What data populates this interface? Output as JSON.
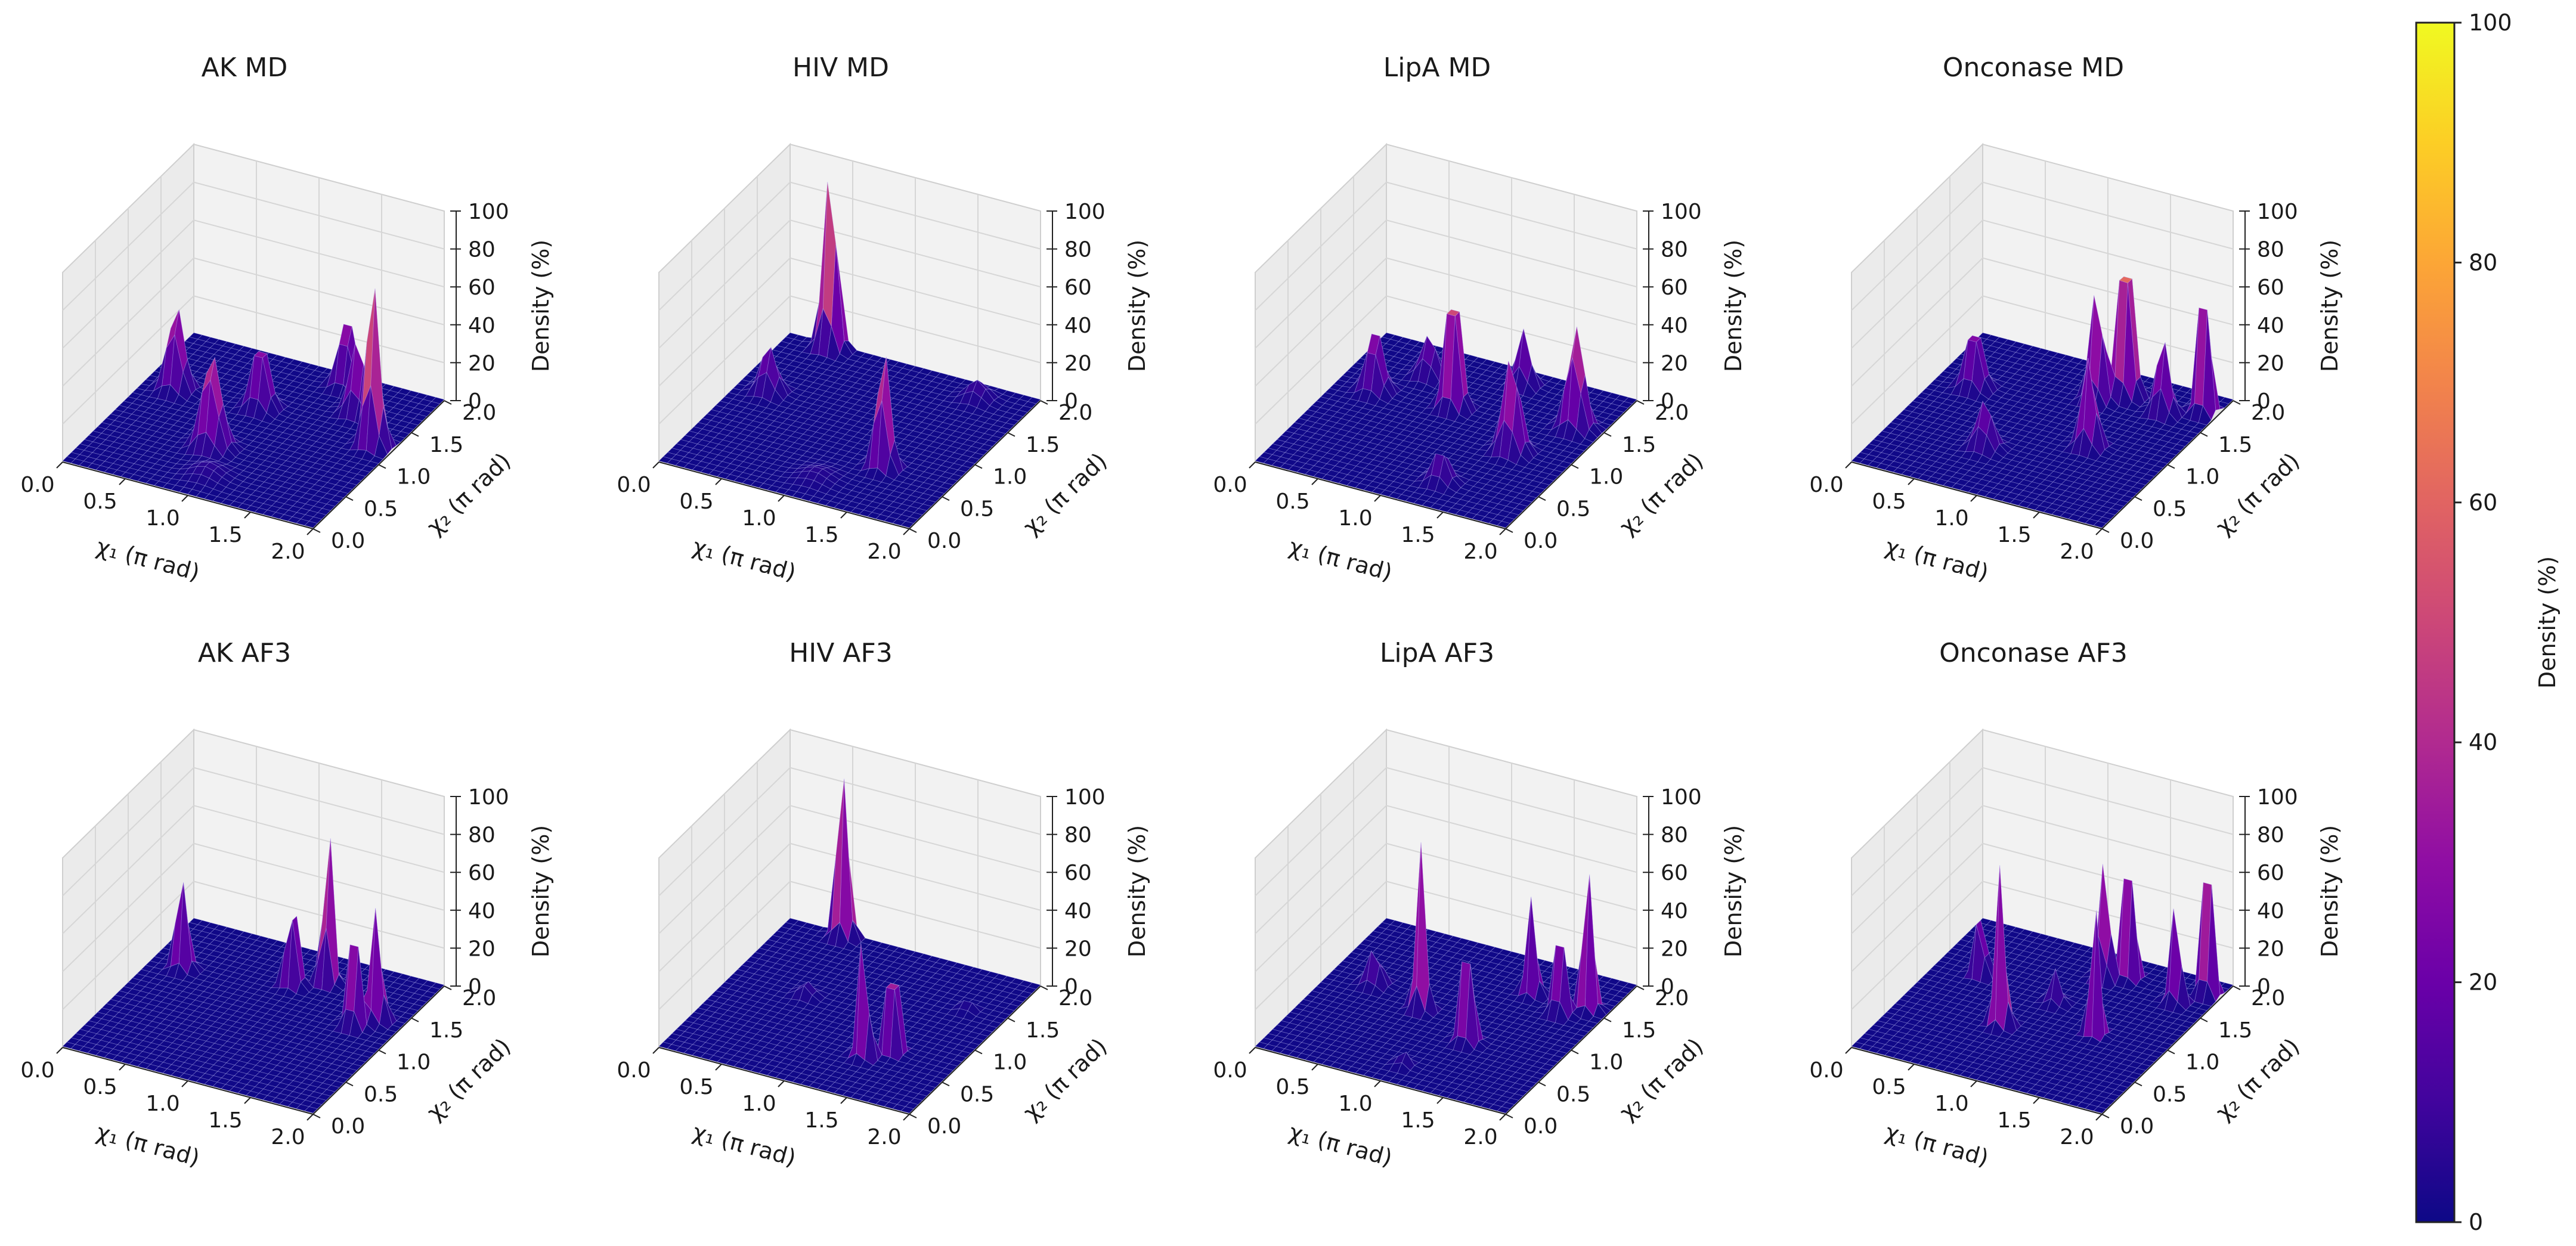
{
  "chart_data": {
    "type": "surface3d",
    "description_note": "Eight 3D surface density plots of chi1/chi2 dihedral angles, MD vs AF3",
    "shared_axes": {
      "xlabel": "χ₁ (π rad)",
      "ylabel": "χ₂ (π rad)",
      "zlabel": "Density (%)",
      "x_ticks": [
        "0.0",
        "0.5",
        "1.0",
        "1.5",
        "2.0"
      ],
      "y_ticks": [
        "0.0",
        "0.5",
        "1.0",
        "1.5",
        "2.0"
      ],
      "z_ticks": [
        "0",
        "20",
        "40",
        "60",
        "80",
        "100"
      ],
      "xlim": [
        0,
        2
      ],
      "ylim": [
        0,
        2
      ],
      "zlim": [
        0,
        100
      ]
    },
    "colorbar": {
      "label": "Density (%)",
      "ticks": [
        "0",
        "20",
        "40",
        "60",
        "80",
        "100"
      ],
      "range": [
        0,
        100
      ],
      "colormap": "plasma"
    },
    "panels": [
      {
        "title": "AK MD",
        "peaks": [
          {
            "x": 0.25,
            "y": 1.25,
            "z": 45,
            "w": 0.06
          },
          {
            "x": 0.85,
            "y": 0.65,
            "z": 50,
            "w": 0.07
          },
          {
            "x": 0.9,
            "y": 1.3,
            "z": 38,
            "w": 0.06
          },
          {
            "x": 1.3,
            "y": 1.85,
            "z": 38,
            "w": 0.06
          },
          {
            "x": 1.55,
            "y": 1.55,
            "z": 40,
            "w": 0.06
          },
          {
            "x": 1.85,
            "y": 1.2,
            "z": 88,
            "w": 0.05
          },
          {
            "x": 1.0,
            "y": 0.3,
            "z": 6,
            "w": 0.1
          }
        ]
      },
      {
        "title": "HIV MD",
        "peaks": [
          {
            "x": 0.25,
            "y": 1.2,
            "z": 25,
            "w": 0.06
          },
          {
            "x": 0.35,
            "y": 1.95,
            "z": 98,
            "w": 0.05
          },
          {
            "x": 1.1,
            "y": 0.3,
            "z": 5,
            "w": 0.1
          },
          {
            "x": 1.45,
            "y": 0.65,
            "z": 65,
            "w": 0.05
          },
          {
            "x": 1.6,
            "y": 1.8,
            "z": 10,
            "w": 0.07
          }
        ]
      },
      {
        "title": "LipA MD",
        "peaks": [
          {
            "x": 0.3,
            "y": 1.25,
            "z": 35,
            "w": 0.06
          },
          {
            "x": 0.55,
            "y": 1.6,
            "z": 22,
            "w": 0.06
          },
          {
            "x": 0.9,
            "y": 1.3,
            "z": 78,
            "w": 0.05
          },
          {
            "x": 1.2,
            "y": 1.8,
            "z": 30,
            "w": 0.05
          },
          {
            "x": 1.3,
            "y": 0.35,
            "z": 18,
            "w": 0.06
          },
          {
            "x": 1.55,
            "y": 0.95,
            "z": 52,
            "w": 0.06
          },
          {
            "x": 1.8,
            "y": 1.45,
            "z": 55,
            "w": 0.06
          }
        ]
      },
      {
        "title": "Onconase MD",
        "peaks": [
          {
            "x": 0.3,
            "y": 1.3,
            "z": 35,
            "w": 0.06
          },
          {
            "x": 0.75,
            "y": 0.6,
            "z": 25,
            "w": 0.06
          },
          {
            "x": 1.15,
            "y": 1.55,
            "z": 62,
            "w": 0.05
          },
          {
            "x": 1.3,
            "y": 1.7,
            "z": 95,
            "w": 0.05
          },
          {
            "x": 1.4,
            "y": 0.95,
            "z": 50,
            "w": 0.05
          },
          {
            "x": 1.65,
            "y": 1.6,
            "z": 40,
            "w": 0.05
          },
          {
            "x": 1.9,
            "y": 1.75,
            "z": 85,
            "w": 0.04
          }
        ]
      },
      {
        "title": "AK AF3",
        "peaks": [
          {
            "x": 0.25,
            "y": 1.35,
            "z": 55,
            "w": 0.04
          },
          {
            "x": 1.05,
            "y": 1.5,
            "z": 55,
            "w": 0.04
          },
          {
            "x": 1.25,
            "y": 1.65,
            "z": 95,
            "w": 0.035
          },
          {
            "x": 1.7,
            "y": 1.2,
            "z": 60,
            "w": 0.04
          },
          {
            "x": 1.8,
            "y": 1.35,
            "z": 65,
            "w": 0.04
          }
        ]
      },
      {
        "title": "HIV AF3",
        "peaks": [
          {
            "x": 0.45,
            "y": 1.95,
            "z": 100,
            "w": 0.04
          },
          {
            "x": 0.6,
            "y": 1.1,
            "z": 8,
            "w": 0.05
          },
          {
            "x": 1.35,
            "y": 0.55,
            "z": 75,
            "w": 0.035
          },
          {
            "x": 1.5,
            "y": 0.7,
            "z": 85,
            "w": 0.035
          },
          {
            "x": 1.7,
            "y": 1.45,
            "z": 6,
            "w": 0.04
          }
        ]
      },
      {
        "title": "LipA AF3",
        "peaks": [
          {
            "x": 0.35,
            "y": 1.15,
            "z": 20,
            "w": 0.05
          },
          {
            "x": 0.8,
            "y": 1.0,
            "z": 88,
            "w": 0.035
          },
          {
            "x": 1.3,
            "y": 0.75,
            "z": 65,
            "w": 0.04
          },
          {
            "x": 1.4,
            "y": 1.55,
            "z": 58,
            "w": 0.035
          },
          {
            "x": 1.7,
            "y": 1.4,
            "z": 50,
            "w": 0.04
          },
          {
            "x": 1.85,
            "y": 1.55,
            "z": 90,
            "w": 0.035
          },
          {
            "x": 1.05,
            "y": 0.25,
            "z": 8,
            "w": 0.04
          }
        ]
      },
      {
        "title": "Onconase AF3",
        "peaks": [
          {
            "x": 0.35,
            "y": 1.3,
            "z": 48,
            "w": 0.035
          },
          {
            "x": 0.8,
            "y": 0.75,
            "z": 95,
            "w": 0.035
          },
          {
            "x": 1.0,
            "y": 1.2,
            "z": 18,
            "w": 0.04
          },
          {
            "x": 1.15,
            "y": 1.65,
            "z": 75,
            "w": 0.035
          },
          {
            "x": 1.3,
            "y": 1.75,
            "z": 92,
            "w": 0.035
          },
          {
            "x": 1.45,
            "y": 0.95,
            "z": 90,
            "w": 0.03
          },
          {
            "x": 1.75,
            "y": 1.6,
            "z": 55,
            "w": 0.035
          },
          {
            "x": 1.9,
            "y": 1.8,
            "z": 92,
            "w": 0.035
          }
        ]
      }
    ]
  }
}
